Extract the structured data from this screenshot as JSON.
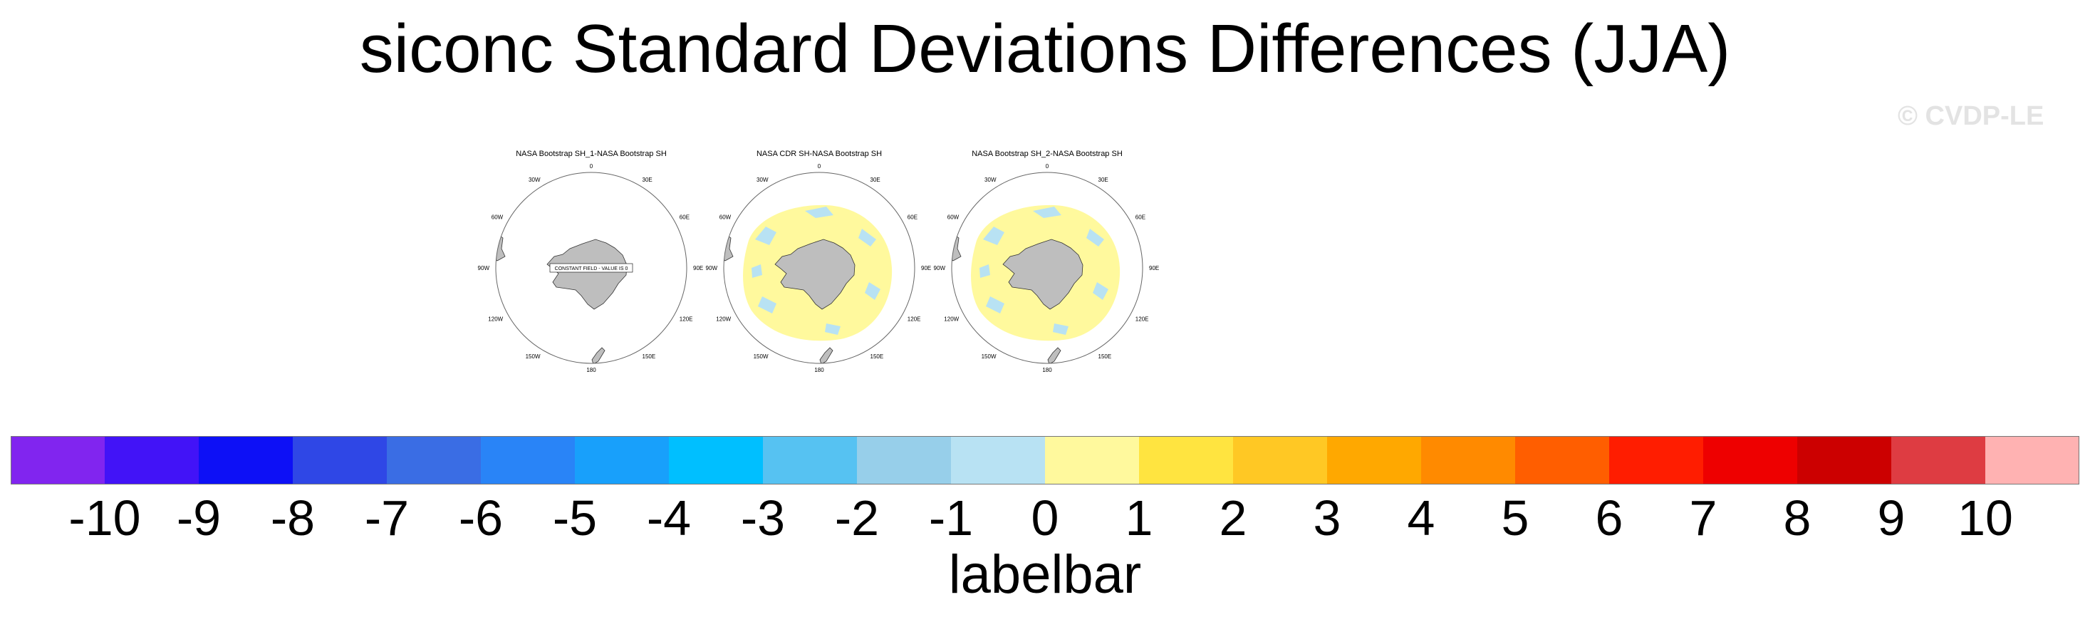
{
  "figure": {
    "title": "siconc Standard Deviations Differences (JJA)",
    "watermark": "© CVDP-LE"
  },
  "panels": [
    {
      "title": "NASA Bootstrap SH_1-NASA Bootstrap SH",
      "shading": "none",
      "note": "CONSTANT FIELD - VALUE IS 0"
    },
    {
      "title": "NASA CDR SH-NASA Bootstrap SH",
      "shading": "ring",
      "note": ""
    },
    {
      "title": "NASA Bootstrap SH_2-NASA Bootstrap SH",
      "shading": "ring",
      "note": ""
    }
  ],
  "longitude_labels": [
    "0",
    "30E",
    "60E",
    "90E",
    "120E",
    "150E",
    "180",
    "150W",
    "120W",
    "90W",
    "60W",
    "30W"
  ],
  "labelbar": {
    "title": "labelbar",
    "ticks": [
      "-10",
      "-9",
      "-8",
      "-7",
      "-6",
      "-5",
      "-4",
      "-3",
      "-2",
      "-1",
      "0",
      "1",
      "2",
      "3",
      "4",
      "5",
      "6",
      "7",
      "8",
      "9",
      "10"
    ],
    "colors": [
      "#8125ef",
      "#4213f7",
      "#0d10f6",
      "#2f47e6",
      "#3a6de4",
      "#2984f7",
      "#18a0fb",
      "#00bfff",
      "#56c2f2",
      "#97cfea",
      "#b8e2f3",
      "#fff99d",
      "#ffe440",
      "#ffc824",
      "#ffa800",
      "#ff8a00",
      "#ff5e00",
      "#ff1d00",
      "#ee0000",
      "#cc0000",
      "#de3c42",
      "#ffb2b2"
    ]
  },
  "colors": {
    "land": "#bebebe",
    "ocean": "#ffffff",
    "positive_small": "#fff99d",
    "negative_small": "#b8e2f3"
  }
}
